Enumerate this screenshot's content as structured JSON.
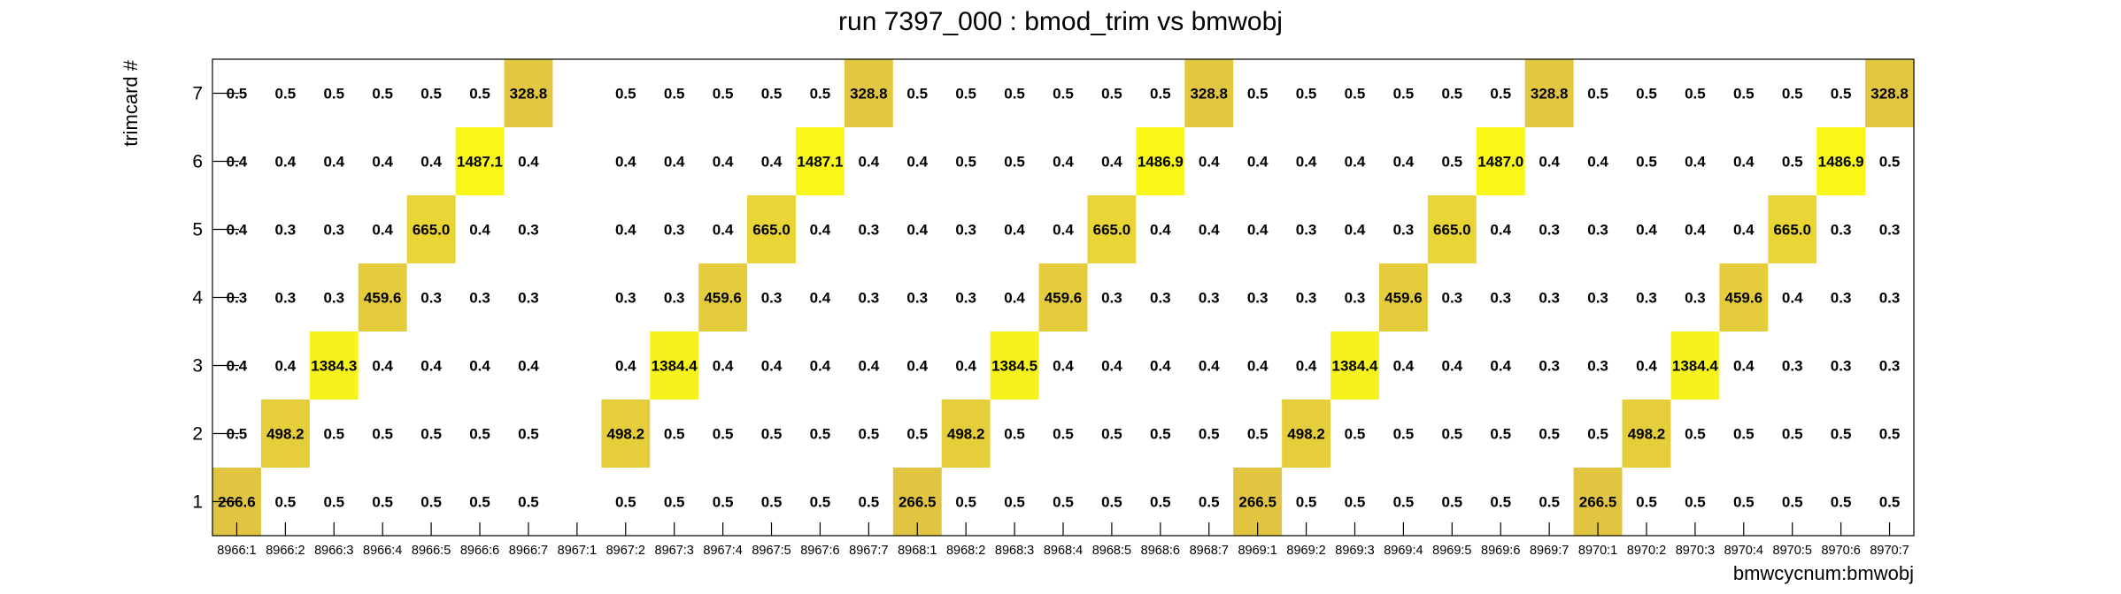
{
  "chart_data": {
    "type": "heatmap",
    "title": "run 7397_000 : bmod_trim vs bmwobj",
    "xlabel": "bmwcycnum:bmwobj",
    "ylabel": "trimcard #",
    "x_categories": [
      "8966:1",
      "8966:2",
      "8966:3",
      "8966:4",
      "8966:5",
      "8966:6",
      "8966:7",
      "8967:1",
      "8967:2",
      "8967:3",
      "8967:4",
      "8967:5",
      "8967:6",
      "8967:7",
      "8968:1",
      "8968:2",
      "8968:3",
      "8968:4",
      "8968:5",
      "8968:6",
      "8968:7",
      "8969:1",
      "8969:2",
      "8969:3",
      "8969:4",
      "8969:5",
      "8969:6",
      "8969:7",
      "8970:1",
      "8970:2",
      "8970:3",
      "8970:4",
      "8970:5",
      "8970:6",
      "8970:7"
    ],
    "y_categories": [
      "1",
      "2",
      "3",
      "4",
      "5",
      "6",
      "7"
    ],
    "values": [
      [
        "266.6",
        "0.5",
        "0.5",
        "0.5",
        "0.5",
        "0.5",
        "0.5",
        "",
        "0.5",
        "0.5",
        "0.5",
        "0.5",
        "0.5",
        "0.5",
        "266.5",
        "0.5",
        "0.5",
        "0.5",
        "0.5",
        "0.5",
        "0.5",
        "266.5",
        "0.5",
        "0.5",
        "0.5",
        "0.5",
        "0.5",
        "0.5",
        "266.5",
        "0.5",
        "0.5",
        "0.5",
        "0.5",
        "0.5",
        "0.5"
      ],
      [
        "0.5",
        "498.2",
        "0.5",
        "0.5",
        "0.5",
        "0.5",
        "0.5",
        "",
        "498.2",
        "0.5",
        "0.5",
        "0.5",
        "0.5",
        "0.5",
        "0.5",
        "498.2",
        "0.5",
        "0.5",
        "0.5",
        "0.5",
        "0.5",
        "0.5",
        "498.2",
        "0.5",
        "0.5",
        "0.5",
        "0.5",
        "0.5",
        "0.5",
        "498.2",
        "0.5",
        "0.5",
        "0.5",
        "0.5",
        "0.5"
      ],
      [
        "0.4",
        "0.4",
        "1384.3",
        "0.4",
        "0.4",
        "0.4",
        "0.4",
        "",
        "0.4",
        "1384.4",
        "0.4",
        "0.4",
        "0.4",
        "0.4",
        "0.4",
        "0.4",
        "1384.5",
        "0.4",
        "0.4",
        "0.4",
        "0.4",
        "0.4",
        "0.4",
        "1384.4",
        "0.4",
        "0.4",
        "0.4",
        "0.3",
        "0.3",
        "0.4",
        "1384.4",
        "0.4",
        "0.3",
        "0.3",
        "0.3"
      ],
      [
        "0.3",
        "0.3",
        "0.3",
        "459.6",
        "0.3",
        "0.3",
        "0.3",
        "",
        "0.3",
        "0.3",
        "459.6",
        "0.3",
        "0.4",
        "0.3",
        "0.3",
        "0.3",
        "0.4",
        "459.6",
        "0.3",
        "0.3",
        "0.3",
        "0.3",
        "0.3",
        "0.3",
        "459.6",
        "0.3",
        "0.3",
        "0.3",
        "0.3",
        "0.3",
        "0.3",
        "459.6",
        "0.4",
        "0.3",
        "0.3"
      ],
      [
        "0.4",
        "0.3",
        "0.3",
        "0.4",
        "665.0",
        "0.4",
        "0.3",
        "",
        "0.4",
        "0.3",
        "0.4",
        "665.0",
        "0.4",
        "0.3",
        "0.4",
        "0.3",
        "0.4",
        "0.4",
        "665.0",
        "0.4",
        "0.4",
        "0.4",
        "0.3",
        "0.4",
        "0.3",
        "665.0",
        "0.4",
        "0.3",
        "0.3",
        "0.4",
        "0.4",
        "0.4",
        "665.0",
        "0.3",
        "0.3"
      ],
      [
        "0.4",
        "0.4",
        "0.4",
        "0.4",
        "0.4",
        "1487.1",
        "0.4",
        "",
        "0.4",
        "0.4",
        "0.4",
        "0.4",
        "1487.1",
        "0.4",
        "0.4",
        "0.5",
        "0.5",
        "0.4",
        "0.4",
        "1486.9",
        "0.4",
        "0.4",
        "0.4",
        "0.4",
        "0.4",
        "0.5",
        "1487.0",
        "0.4",
        "0.4",
        "0.5",
        "0.4",
        "0.4",
        "0.5",
        "1486.9",
        "0.5"
      ],
      [
        "0.5",
        "0.5",
        "0.5",
        "0.5",
        "0.5",
        "0.5",
        "328.8",
        "",
        "0.5",
        "0.5",
        "0.5",
        "0.5",
        "0.5",
        "328.8",
        "0.5",
        "0.5",
        "0.5",
        "0.5",
        "0.5",
        "0.5",
        "328.8",
        "0.5",
        "0.5",
        "0.5",
        "0.5",
        "0.5",
        "0.5",
        "328.8",
        "0.5",
        "0.5",
        "0.5",
        "0.5",
        "0.5",
        "0.5",
        "328.8"
      ]
    ],
    "zlim": [
      0,
      1500
    ],
    "colors": {
      "low": "#ddb94c",
      "high": "#f8f818",
      "axis": "#000000"
    },
    "grid": false
  }
}
